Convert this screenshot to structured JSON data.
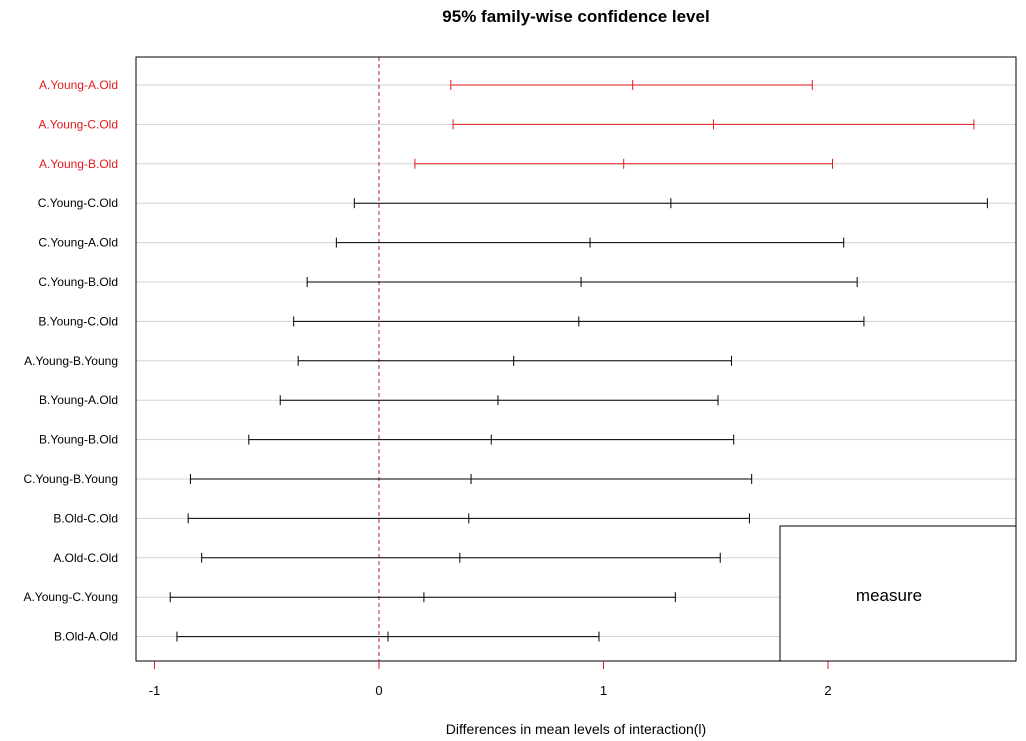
{
  "chart_data": {
    "type": "errorbar",
    "title": "95% family-wise confidence level",
    "xlabel": "Differences in mean levels of interaction(l)",
    "xlim": [
      -1.05,
      2.85
    ],
    "xticks": [
      -1,
      0,
      1,
      2
    ],
    "grid": "horizontal",
    "reference_line": 0,
    "colors": {
      "significant": "#e31a1c",
      "normal": "#000000",
      "grid": "#d3d3d3",
      "reference": "#b22222"
    },
    "legend": {
      "position": "bottom-right",
      "label": "measure"
    },
    "comparisons": [
      {
        "label": "A.Young-A.Old",
        "lwr": 0.32,
        "diff": 1.13,
        "upr": 1.93,
        "significant": true
      },
      {
        "label": "A.Young-C.Old",
        "lwr": 0.33,
        "diff": 1.49,
        "upr": 2.65,
        "significant": true
      },
      {
        "label": "A.Young-B.Old",
        "lwr": 0.16,
        "diff": 1.09,
        "upr": 2.02,
        "significant": true
      },
      {
        "label": "C.Young-C.Old",
        "lwr": -0.11,
        "diff": 1.3,
        "upr": 2.71,
        "significant": false
      },
      {
        "label": "C.Young-A.Old",
        "lwr": -0.19,
        "diff": 0.94,
        "upr": 2.07,
        "significant": false
      },
      {
        "label": "C.Young-B.Old",
        "lwr": -0.32,
        "diff": 0.9,
        "upr": 2.13,
        "significant": false
      },
      {
        "label": "B.Young-C.Old",
        "lwr": -0.38,
        "diff": 0.89,
        "upr": 2.16,
        "significant": false
      },
      {
        "label": "A.Young-B.Young",
        "lwr": -0.36,
        "diff": 0.6,
        "upr": 1.57,
        "significant": false
      },
      {
        "label": "B.Young-A.Old",
        "lwr": -0.44,
        "diff": 0.53,
        "upr": 1.51,
        "significant": false
      },
      {
        "label": "B.Young-B.Old",
        "lwr": -0.58,
        "diff": 0.5,
        "upr": 1.58,
        "significant": false
      },
      {
        "label": "C.Young-B.Young",
        "lwr": -0.84,
        "diff": 0.41,
        "upr": 1.66,
        "significant": false
      },
      {
        "label": "B.Old-C.Old",
        "lwr": -0.85,
        "diff": 0.4,
        "upr": 1.65,
        "significant": false
      },
      {
        "label": "A.Old-C.Old",
        "lwr": -0.79,
        "diff": 0.36,
        "upr": 1.52,
        "significant": false
      },
      {
        "label": "A.Young-C.Young",
        "lwr": -0.93,
        "diff": 0.2,
        "upr": 1.32,
        "significant": false
      },
      {
        "label": "B.Old-A.Old",
        "lwr": -0.9,
        "diff": 0.04,
        "upr": 0.98,
        "significant": false
      }
    ]
  }
}
